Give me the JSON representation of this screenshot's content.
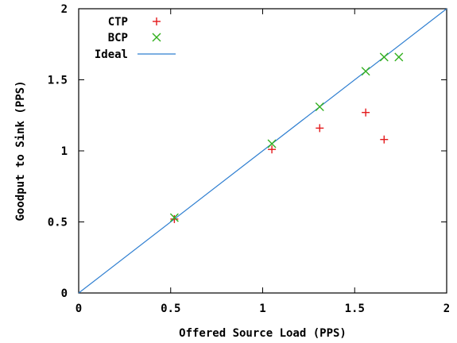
{
  "chart_data": {
    "type": "scatter",
    "xlabel": "Offered Source Load (PPS)",
    "ylabel": "Goodput to Sink (PPS)",
    "xlim": [
      0,
      2
    ],
    "ylim": [
      0,
      2
    ],
    "x_ticks": [
      "0",
      "0.5",
      "1",
      "1.5",
      "2"
    ],
    "y_ticks": [
      "0",
      "0.5",
      "1",
      "1.5",
      "2"
    ],
    "grid": false,
    "legend_position": "top-left",
    "series": [
      {
        "name": "CTP",
        "marker": "plus",
        "color": "#e31a1c",
        "x": [
          0.52,
          1.05,
          1.31,
          1.56,
          1.66
        ],
        "y": [
          0.52,
          1.01,
          1.16,
          1.27,
          1.08
        ]
      },
      {
        "name": "BCP",
        "marker": "cross",
        "color": "#33b01f",
        "x": [
          0.52,
          1.05,
          1.31,
          1.56,
          1.66,
          1.74
        ],
        "y": [
          0.53,
          1.05,
          1.31,
          1.56,
          1.66,
          1.66
        ]
      },
      {
        "name": "Ideal",
        "marker": "line",
        "color": "#2f7fd1",
        "x": [
          0,
          2
        ],
        "y": [
          0,
          2
        ]
      }
    ]
  }
}
